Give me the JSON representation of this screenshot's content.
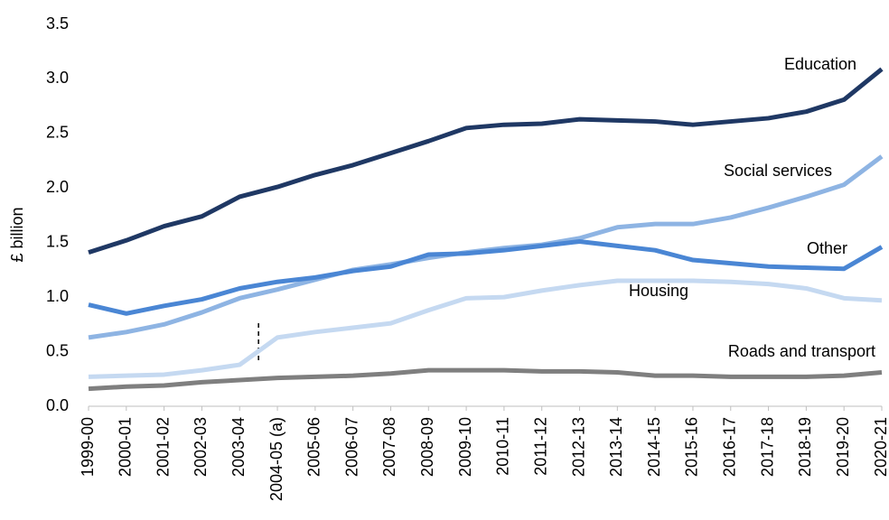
{
  "chart_data": {
    "type": "line",
    "y_label": "£ billion",
    "categories": [
      "1999-00",
      "2000-01",
      "2001-02",
      "2002-03",
      "2003-04",
      "2004-05 (a)",
      "2005-06",
      "2006-07",
      "2007-08",
      "2008-09",
      "2009-10",
      "2010-11",
      "2011-12",
      "2012-13",
      "2013-14",
      "2014-15",
      "2015-16",
      "2016-17",
      "2017-18",
      "2018-19",
      "2019-20",
      "2020-21"
    ],
    "series": [
      {
        "name": "Education",
        "color": "#1f3864",
        "values": [
          1.41,
          1.52,
          1.65,
          1.74,
          1.92,
          2.01,
          2.12,
          2.21,
          2.32,
          2.43,
          2.55,
          2.58,
          2.59,
          2.63,
          2.62,
          2.61,
          2.58,
          2.61,
          2.64,
          2.7,
          2.81,
          3.09
        ]
      },
      {
        "name": "Social services",
        "color": "#8eb4e3",
        "values": [
          0.63,
          0.68,
          0.75,
          0.86,
          0.99,
          1.07,
          1.16,
          1.25,
          1.3,
          1.36,
          1.41,
          1.45,
          1.48,
          1.54,
          1.64,
          1.67,
          1.67,
          1.73,
          1.82,
          1.92,
          2.03,
          2.29
        ]
      },
      {
        "name": "Other",
        "color": "#4a86d4",
        "values": [
          0.93,
          0.85,
          0.92,
          0.98,
          1.08,
          1.14,
          1.18,
          1.24,
          1.28,
          1.39,
          1.4,
          1.43,
          1.47,
          1.51,
          1.47,
          1.43,
          1.34,
          1.31,
          1.28,
          1.27,
          1.26,
          1.46
        ]
      },
      {
        "name": "Housing",
        "color": "#c5d9f1",
        "values": [
          0.27,
          0.28,
          0.29,
          0.33,
          0.38,
          0.63,
          0.68,
          0.72,
          0.76,
          0.88,
          0.99,
          1.0,
          1.06,
          1.11,
          1.15,
          1.15,
          1.15,
          1.14,
          1.12,
          1.08,
          0.99,
          0.97
        ]
      },
      {
        "name": "Roads and transport",
        "color": "#7f7f7f",
        "values": [
          0.16,
          0.18,
          0.19,
          0.22,
          0.24,
          0.26,
          0.27,
          0.28,
          0.3,
          0.33,
          0.33,
          0.33,
          0.32,
          0.32,
          0.31,
          0.28,
          0.28,
          0.27,
          0.27,
          0.27,
          0.28,
          0.31
        ]
      }
    ],
    "ylim": [
      0,
      3.5
    ],
    "yticks": [
      {
        "value": 0,
        "label": "0.0"
      },
      0.5,
      {
        "value": 1,
        "label": "1.0"
      },
      1.5,
      {
        "value": 2,
        "label": "2.0"
      },
      2.5,
      {
        "value": 3,
        "label": "3.0"
      },
      3.5
    ],
    "grid": false
  }
}
